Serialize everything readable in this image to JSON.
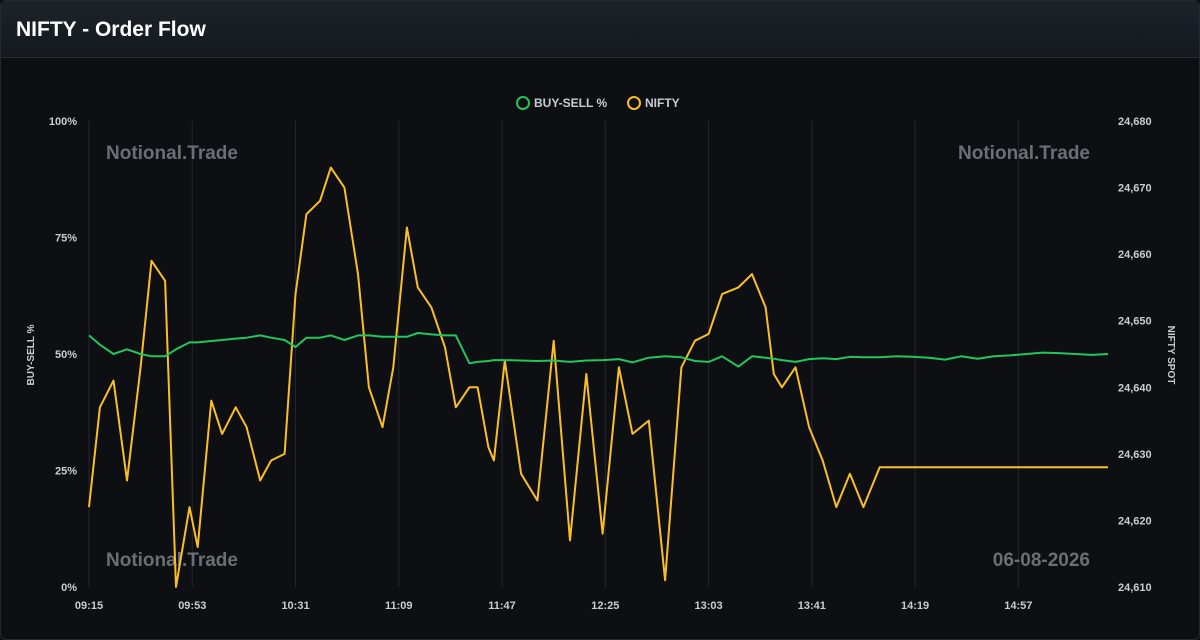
{
  "header": {
    "title": "NIFTY - Order Flow"
  },
  "colors": {
    "buy_sell": "#22c55e",
    "nifty": "#fbbf24",
    "grid": "#24282e",
    "axis_text": "#c9cdd2",
    "watermark": "#6b6f75"
  },
  "watermarks": [
    "Notional.Trade",
    "Notional.Trade",
    "Notional.Trade",
    "06-08-2026"
  ],
  "chart_data": {
    "type": "line",
    "title": "",
    "xlabel": "",
    "ylabel": "BUY-SELL %",
    "y2label": "NIFTY SPOT",
    "legend_position": "top-center",
    "grid": true,
    "x_ticks": [
      "09:15",
      "09:53",
      "10:31",
      "11:09",
      "11:47",
      "12:25",
      "13:03",
      "13:41",
      "14:19",
      "14:57"
    ],
    "y_ticks": [
      "0%",
      "25%",
      "50%",
      "75%",
      "100%"
    ],
    "y2_ticks": [
      "24,610",
      "24,620",
      "24,630",
      "24,640",
      "24,650",
      "24,660",
      "24,670",
      "24,680"
    ],
    "ylim": [
      0,
      100
    ],
    "y2lim": [
      24610,
      24680
    ],
    "time_range": [
      "09:15",
      "15:30"
    ],
    "series": [
      {
        "name": "BUY-SELL %",
        "axis": "left",
        "x": [
          "09:15",
          "09:19",
          "09:24",
          "09:29",
          "09:34",
          "09:38",
          "09:43",
          "09:47",
          "09:52",
          "09:55",
          "10:00",
          "10:04",
          "10:09",
          "10:13",
          "10:18",
          "10:22",
          "10:27",
          "10:31",
          "10:35",
          "10:40",
          "10:44",
          "10:49",
          "10:54",
          "10:58",
          "11:03",
          "11:07",
          "11:12",
          "11:16",
          "11:21",
          "11:26",
          "11:30",
          "11:35",
          "11:38",
          "11:42",
          "11:44",
          "11:48",
          "11:54",
          "12:00",
          "12:06",
          "12:12",
          "12:18",
          "12:24",
          "12:30",
          "12:35",
          "12:41",
          "12:47",
          "12:53",
          "12:58",
          "13:03",
          "13:08",
          "13:14",
          "13:19",
          "13:24",
          "13:27",
          "13:30",
          "13:35",
          "13:40",
          "13:45",
          "13:50",
          "13:55",
          "14:00",
          "14:06",
          "14:12",
          "14:18",
          "14:24",
          "14:30",
          "14:36",
          "14:42",
          "14:48",
          "14:54",
          "15:00",
          "15:06",
          "15:12",
          "15:18",
          "15:24",
          "15:30"
        ],
        "values": [
          54,
          52,
          50,
          51,
          50,
          49.5,
          49.5,
          51,
          52.5,
          52.5,
          52.8,
          53,
          53.3,
          53.5,
          54,
          53.5,
          53,
          51.5,
          53.5,
          53.5,
          54,
          53,
          54,
          54,
          53.7,
          53.7,
          53.7,
          54.5,
          54.2,
          54,
          54,
          48,
          48.3,
          48.5,
          48.7,
          48.7,
          48.6,
          48.5,
          48.6,
          48.3,
          48.6,
          48.7,
          48.9,
          48.2,
          49.2,
          49.5,
          49.3,
          48.5,
          48.3,
          49.5,
          47.3,
          49.5,
          49.2,
          49,
          48.7,
          48.3,
          48.9,
          49.1,
          48.9,
          49.4,
          49.3,
          49.3,
          49.5,
          49.4,
          49.2,
          48.8,
          49.5,
          49,
          49.5,
          49.7,
          50,
          50.3,
          50.2,
          50,
          49.8,
          50
        ]
      },
      {
        "name": "NIFTY",
        "axis": "right",
        "x": [
          "09:15",
          "09:19",
          "09:24",
          "09:29",
          "09:34",
          "09:38",
          "09:43",
          "09:47",
          "09:52",
          "09:55",
          "10:00",
          "10:04",
          "10:09",
          "10:13",
          "10:18",
          "10:22",
          "10:27",
          "10:31",
          "10:35",
          "10:40",
          "10:44",
          "10:49",
          "10:54",
          "10:58",
          "11:03",
          "11:07",
          "11:12",
          "11:16",
          "11:21",
          "11:26",
          "11:30",
          "11:35",
          "11:38",
          "11:42",
          "11:44",
          "11:48",
          "11:54",
          "12:00",
          "12:06",
          "12:12",
          "12:18",
          "12:24",
          "12:30",
          "12:35",
          "12:41",
          "12:47",
          "12:53",
          "12:58",
          "13:03",
          "13:08",
          "13:14",
          "13:19",
          "13:24",
          "13:27",
          "13:30",
          "13:35",
          "13:40",
          "13:45",
          "13:50",
          "13:55",
          "14:00",
          "14:06",
          "14:12",
          "14:18",
          "14:24",
          "14:30",
          "14:36",
          "14:42",
          "14:48",
          "14:54",
          "15:00",
          "15:06",
          "15:12",
          "15:18",
          "15:24",
          "15:30"
        ],
        "values": [
          24622,
          24637,
          24641,
          24626,
          24643,
          24659,
          24656,
          24610,
          24622,
          24616,
          24638,
          24633,
          24637,
          24634,
          24626,
          24629,
          24630,
          24654,
          24666,
          24668,
          24673,
          24670,
          24657,
          24640,
          24634,
          24643,
          24664,
          24655,
          24652,
          24646,
          24637,
          24640,
          24640,
          24631,
          24629,
          24644,
          24627,
          24623,
          24647,
          24617,
          24642,
          24618,
          24643,
          24633,
          24635,
          24611,
          24643,
          24647,
          24648,
          24654,
          24655,
          24657,
          24652,
          24642,
          24640,
          24643,
          24634,
          24629,
          24622,
          24627,
          24622,
          24628,
          24628,
          24628,
          24628,
          24628,
          24628,
          24628,
          24628,
          24628,
          24628,
          24628,
          24628,
          24628,
          24628,
          24628
        ],
        "note": "values as read from the plotted curve"
      }
    ]
  }
}
